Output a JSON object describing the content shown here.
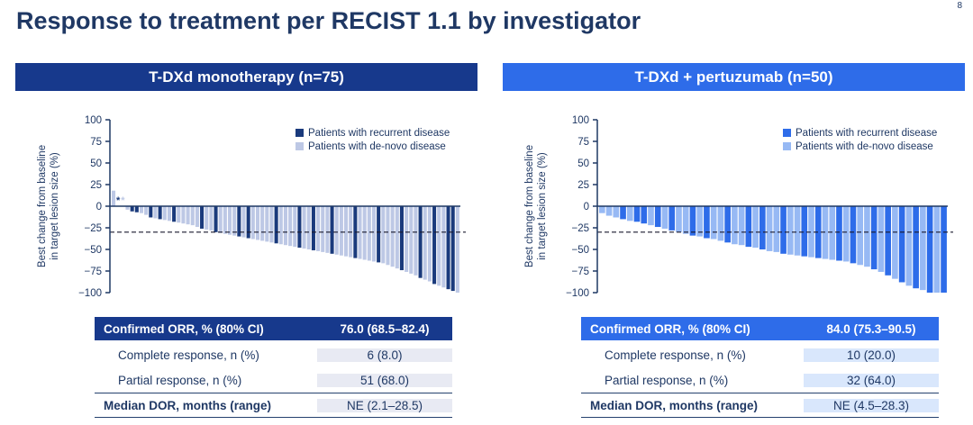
{
  "page": {
    "title": "Response to treatment per RECIST 1.1 by investigator",
    "page_number": "8"
  },
  "colors": {
    "navy_text": "#1f3864",
    "dash_line": "#1a1a2e"
  },
  "panels": [
    {
      "header": "T-DXd monotherapy (n=75)",
      "header_bg": "#17398c",
      "value_bg": "#e8eaf3",
      "table": {
        "rows": [
          {
            "label": "Confirmed ORR, % (80% CI)",
            "value": "76.0 (68.5–82.4)",
            "style": "header"
          },
          {
            "label": "Complete response, n (%)",
            "value": "6 (8.0)",
            "style": "sub"
          },
          {
            "label": "Partial response, n (%)",
            "value": "51 (68.0)",
            "style": "sub"
          },
          {
            "label": "Median DOR, months (range)",
            "value": "NE (2.1–28.5)",
            "style": "bold"
          }
        ]
      }
    },
    {
      "header": "T-DXd + pertuzumab (n=50)",
      "header_bg": "#2e6ce9",
      "value_bg": "#d9e7fc",
      "table": {
        "rows": [
          {
            "label": "Confirmed ORR, % (80% CI)",
            "value": "84.0 (75.3–90.5)",
            "style": "header"
          },
          {
            "label": "Complete response, n (%)",
            "value": "10 (20.0)",
            "style": "sub"
          },
          {
            "label": "Partial response, n (%)",
            "value": "32 (64.0)",
            "style": "sub"
          },
          {
            "label": "Median DOR, months (range)",
            "value": "NE (4.5–28.3)",
            "style": "bold"
          }
        ]
      }
    }
  ],
  "chart_data": [
    {
      "type": "bar",
      "title": "T-DXd monotherapy (n=75)",
      "n": 75,
      "ylabel_line1": "Best change from baseline",
      "ylabel_line2": "in target lesion size (%)",
      "ylim": [
        -100,
        100
      ],
      "yticks": [
        100,
        75,
        50,
        25,
        0,
        -25,
        -50,
        -75,
        -100
      ],
      "reference_line": -30,
      "grid": false,
      "legend_position": "upper right",
      "series": [
        {
          "name": "Patients with recurrent disease",
          "key": "r",
          "color": "#1a3a7c"
        },
        {
          "name": "Patients with de-novo disease",
          "key": "d",
          "color": "#bdc8e5"
        }
      ],
      "bars": [
        [
          18,
          "d"
        ],
        [
          0,
          "r",
          "*"
        ],
        [
          0,
          "d",
          "*"
        ],
        [
          -4,
          "d"
        ],
        [
          -6,
          "r"
        ],
        [
          -7,
          "r"
        ],
        [
          -8,
          "d"
        ],
        [
          -10,
          "d"
        ],
        [
          -13,
          "r"
        ],
        [
          -14,
          "d"
        ],
        [
          -15,
          "r"
        ],
        [
          -16,
          "d"
        ],
        [
          -17,
          "d"
        ],
        [
          -18,
          "r"
        ],
        [
          -19,
          "d"
        ],
        [
          -20,
          "d"
        ],
        [
          -21,
          "d"
        ],
        [
          -22,
          "d"
        ],
        [
          -24,
          "d"
        ],
        [
          -26,
          "r"
        ],
        [
          -27,
          "d"
        ],
        [
          -28,
          "d"
        ],
        [
          -30,
          "r"
        ],
        [
          -31,
          "d"
        ],
        [
          -32,
          "d"
        ],
        [
          -33,
          "d"
        ],
        [
          -34,
          "d"
        ],
        [
          -35,
          "r"
        ],
        [
          -36,
          "d"
        ],
        [
          -37,
          "r"
        ],
        [
          -38,
          "d"
        ],
        [
          -39,
          "d"
        ],
        [
          -40,
          "d"
        ],
        [
          -41,
          "d"
        ],
        [
          -42,
          "d"
        ],
        [
          -43,
          "r"
        ],
        [
          -44,
          "d"
        ],
        [
          -45,
          "d"
        ],
        [
          -46,
          "d"
        ],
        [
          -47,
          "d"
        ],
        [
          -48,
          "r"
        ],
        [
          -49,
          "d"
        ],
        [
          -50,
          "d"
        ],
        [
          -51,
          "r"
        ],
        [
          -52,
          "d"
        ],
        [
          -53,
          "d"
        ],
        [
          -54,
          "d"
        ],
        [
          -55,
          "r"
        ],
        [
          -56,
          "d"
        ],
        [
          -57,
          "d"
        ],
        [
          -58,
          "d"
        ],
        [
          -59,
          "d"
        ],
        [
          -60,
          "r"
        ],
        [
          -61,
          "d"
        ],
        [
          -62,
          "d"
        ],
        [
          -63,
          "d"
        ],
        [
          -64,
          "d"
        ],
        [
          -65,
          "r"
        ],
        [
          -66,
          "d"
        ],
        [
          -68,
          "d"
        ],
        [
          -70,
          "d"
        ],
        [
          -72,
          "d"
        ],
        [
          -74,
          "r"
        ],
        [
          -76,
          "d"
        ],
        [
          -78,
          "d"
        ],
        [
          -80,
          "d"
        ],
        [
          -83,
          "r"
        ],
        [
          -85,
          "d"
        ],
        [
          -87,
          "d"
        ],
        [
          -90,
          "r"
        ],
        [
          -92,
          "d"
        ],
        [
          -94,
          "d"
        ],
        [
          -96,
          "r"
        ],
        [
          -98,
          "r"
        ],
        [
          -100,
          "d"
        ]
      ]
    },
    {
      "type": "bar",
      "title": "T-DXd + pertuzumab (n=50)",
      "n": 50,
      "ylabel_line1": "Best change from baseline",
      "ylabel_line2": "in target lesion size (%)",
      "ylim": [
        -100,
        100
      ],
      "yticks": [
        100,
        75,
        50,
        25,
        0,
        -25,
        -50,
        -75,
        -100
      ],
      "reference_line": -30,
      "grid": false,
      "legend_position": "upper right",
      "series": [
        {
          "name": "Patients with recurrent disease",
          "key": "r",
          "color": "#2e6ce9"
        },
        {
          "name": "Patients with de-novo disease",
          "key": "d",
          "color": "#97b9f4"
        }
      ],
      "bars": [
        [
          -8,
          "d"
        ],
        [
          -11,
          "d"
        ],
        [
          -13,
          "d"
        ],
        [
          -15,
          "r"
        ],
        [
          -17,
          "d"
        ],
        [
          -18,
          "r"
        ],
        [
          -20,
          "r"
        ],
        [
          -22,
          "d"
        ],
        [
          -24,
          "r"
        ],
        [
          -26,
          "d"
        ],
        [
          -28,
          "r"
        ],
        [
          -30,
          "d"
        ],
        [
          -32,
          "d"
        ],
        [
          -34,
          "r"
        ],
        [
          -35,
          "d"
        ],
        [
          -37,
          "r"
        ],
        [
          -38,
          "d"
        ],
        [
          -40,
          "d"
        ],
        [
          -42,
          "r"
        ],
        [
          -44,
          "d"
        ],
        [
          -45,
          "d"
        ],
        [
          -47,
          "r"
        ],
        [
          -48,
          "d"
        ],
        [
          -50,
          "r"
        ],
        [
          -52,
          "d"
        ],
        [
          -53,
          "d"
        ],
        [
          -55,
          "r"
        ],
        [
          -56,
          "d"
        ],
        [
          -57,
          "d"
        ],
        [
          -58,
          "r"
        ],
        [
          -59,
          "d"
        ],
        [
          -60,
          "r"
        ],
        [
          -61,
          "d"
        ],
        [
          -62,
          "d"
        ],
        [
          -63,
          "r"
        ],
        [
          -64,
          "d"
        ],
        [
          -66,
          "r"
        ],
        [
          -68,
          "d"
        ],
        [
          -70,
          "d"
        ],
        [
          -73,
          "r"
        ],
        [
          -76,
          "d"
        ],
        [
          -80,
          "r"
        ],
        [
          -84,
          "d"
        ],
        [
          -88,
          "r"
        ],
        [
          -92,
          "d"
        ],
        [
          -95,
          "r"
        ],
        [
          -97,
          "d"
        ],
        [
          -100,
          "r"
        ],
        [
          -100,
          "d"
        ],
        [
          -100,
          "r"
        ]
      ]
    }
  ]
}
